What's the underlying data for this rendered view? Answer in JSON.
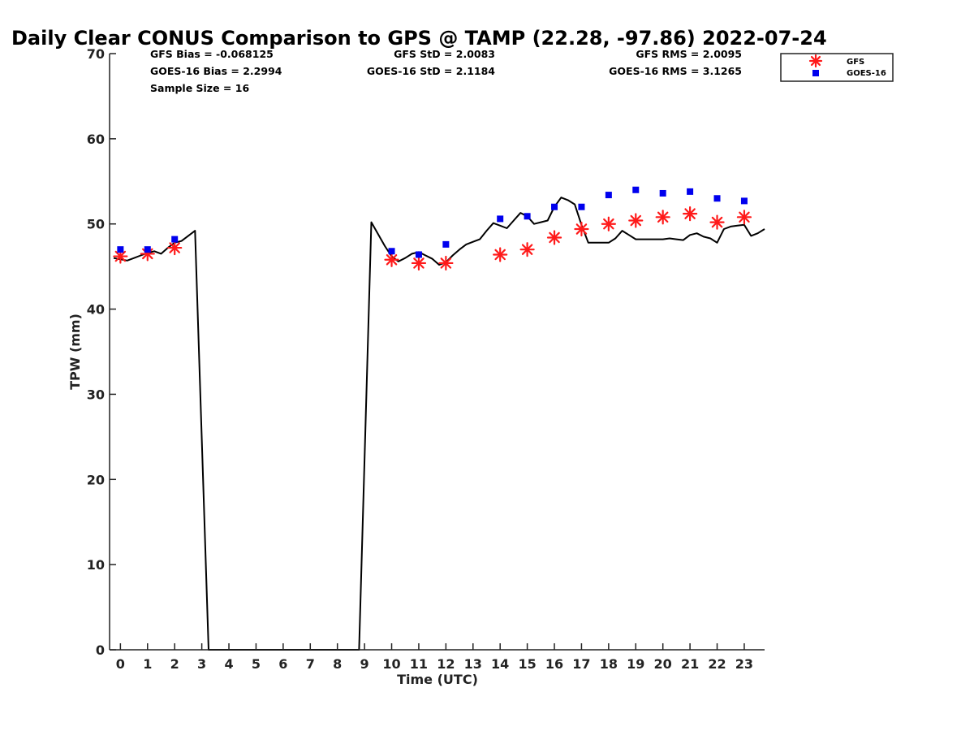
{
  "chart_data": {
    "type": "line",
    "title": "Daily Clear CONUS Comparison to GPS @ TAMP (22.28, -97.86) 2022-07-24",
    "xlabel": "Time (UTC)",
    "ylabel": "TPW (mm)",
    "xlim": [
      -0.4,
      23.75
    ],
    "ylim": [
      0,
      70
    ],
    "x_ticks": [
      0,
      1,
      2,
      3,
      4,
      5,
      6,
      7,
      8,
      9,
      10,
      11,
      12,
      13,
      14,
      15,
      16,
      17,
      18,
      19,
      20,
      21,
      22,
      23
    ],
    "y_ticks": [
      0,
      10,
      20,
      30,
      40,
      50,
      60,
      70
    ],
    "grid": false,
    "legend_position": "top-right",
    "stats": {
      "gfs_bias": "GFS Bias = -0.068125",
      "goes_bias": "GOES-16 Bias = 2.2994",
      "sample_size": "Sample Size = 16",
      "gfs_std": "GFS StD = 2.0083",
      "goes_std": "GOES-16 StD = 2.1184",
      "gfs_rms": "GFS RMS = 2.0095",
      "goes_rms": "GOES-16 RMS = 3.1265"
    },
    "series": [
      {
        "kind": "line",
        "color": "#000000",
        "x": [
          -0.25,
          0.25,
          0.5,
          0.75,
          1.0,
          1.25,
          1.5,
          1.75,
          2.0,
          2.25,
          2.5,
          2.75,
          3.25,
          8.8,
          9.25,
          9.75,
          10.0,
          10.25,
          10.5,
          10.75,
          11.0,
          11.25,
          11.5,
          11.75,
          12.0,
          12.25,
          12.5,
          12.75,
          13.0,
          13.25,
          13.5,
          13.75,
          14.0,
          14.25,
          14.5,
          14.75,
          15.0,
          15.25,
          15.5,
          15.75,
          16.0,
          16.25,
          16.5,
          16.75,
          17.0,
          17.25,
          17.5,
          17.75,
          18.0,
          18.25,
          18.5,
          18.75,
          19.0,
          19.25,
          19.5,
          19.75,
          20.0,
          20.25,
          20.5,
          20.75,
          21.0,
          21.25,
          21.5,
          21.75,
          22.0,
          22.25,
          22.5,
          22.75,
          23.0,
          23.25,
          23.5,
          23.75
        ],
        "values": [
          46.0,
          45.7,
          46.0,
          46.3,
          46.6,
          46.8,
          46.5,
          47.2,
          47.8,
          48.0,
          48.6,
          49.2,
          0,
          0,
          50.2,
          47.4,
          46.2,
          45.6,
          46.0,
          46.5,
          46.7,
          46.3,
          45.9,
          45.2,
          45.5,
          46.3,
          47.0,
          47.6,
          47.9,
          48.2,
          49.2,
          50.1,
          49.8,
          49.5,
          50.4,
          51.3,
          50.9,
          50.0,
          50.2,
          50.4,
          52.0,
          53.1,
          52.8,
          52.3,
          49.9,
          47.8,
          47.8,
          47.8,
          47.8,
          48.3,
          49.2,
          48.7,
          48.2,
          48.2,
          48.2,
          48.2,
          48.2,
          48.3,
          48.2,
          48.1,
          48.7,
          48.9,
          48.5,
          48.3,
          47.8,
          49.4,
          49.7,
          49.8,
          49.9,
          48.6,
          48.9,
          49.4
        ]
      },
      {
        "kind": "scatter",
        "name": "GFS",
        "marker": "asterisk",
        "color": "#ff1a1a",
        "x": [
          0,
          1,
          2,
          10,
          11,
          12,
          14,
          15,
          16,
          17,
          18,
          19,
          20,
          21,
          22,
          23
        ],
        "values": [
          46.2,
          46.5,
          47.2,
          45.8,
          45.4,
          45.4,
          46.4,
          47.0,
          48.4,
          49.4,
          50.0,
          50.4,
          50.8,
          51.2,
          50.2,
          50.8
        ]
      },
      {
        "kind": "scatter",
        "name": "GOES-16",
        "marker": "square",
        "color": "#0000ee",
        "x": [
          0,
          1,
          2,
          10,
          11,
          12,
          14,
          15,
          16,
          17,
          18,
          19,
          20,
          21,
          22,
          23
        ],
        "values": [
          47.0,
          47.0,
          48.2,
          46.8,
          46.4,
          47.6,
          50.6,
          50.9,
          52.0,
          52.0,
          53.4,
          54.0,
          53.6,
          53.8,
          53.0,
          52.7
        ]
      }
    ]
  }
}
